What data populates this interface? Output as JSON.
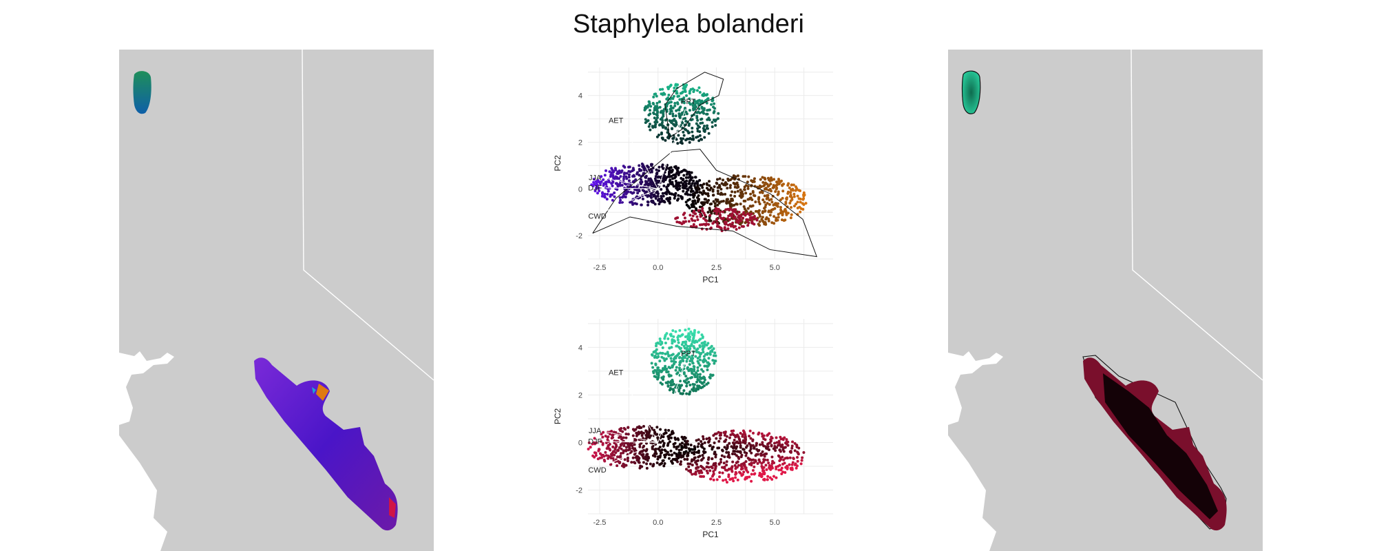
{
  "figure": {
    "title": "Staphylea bolanderi"
  },
  "colors": {
    "map_land": "#cccccc",
    "map_water": "#ffffff",
    "teal": "#1abf8f",
    "purple": "#6a1bd6",
    "orange": "#e07a12",
    "crimson": "#d0143f"
  },
  "left_map": {
    "description_icon": "map-icon"
  },
  "right_map": {
    "description_icon": "map-icon"
  },
  "chart_data": [
    {
      "type": "scatter",
      "title": "",
      "xlabel": "PC1",
      "ylabel": "PC2",
      "xlim": [
        -3.0,
        7.5
      ],
      "ylim": [
        -3.0,
        5.2
      ],
      "x_ticks": [
        "-2.5",
        "0.0",
        "2.5",
        "5.0"
      ],
      "y_ticks": [
        "-2",
        "0",
        "2",
        "4"
      ],
      "grid": true,
      "vector_labels": [
        "AET",
        "JJA",
        "DJF",
        "CWD",
        "PPT"
      ],
      "hull_outline": true
    },
    {
      "type": "scatter",
      "title": "",
      "xlabel": "PC1",
      "ylabel": "PC2",
      "xlim": [
        -3.0,
        7.5
      ],
      "ylim": [
        -3.0,
        5.2
      ],
      "x_ticks": [
        "-2.5",
        "0.0",
        "2.5",
        "5.0"
      ],
      "y_ticks": [
        "-2",
        "0",
        "2",
        "4"
      ],
      "grid": true,
      "vector_labels": [
        "AET",
        "JJA",
        "DJF",
        "CWD",
        "PPT"
      ],
      "hull_outline": false
    }
  ]
}
